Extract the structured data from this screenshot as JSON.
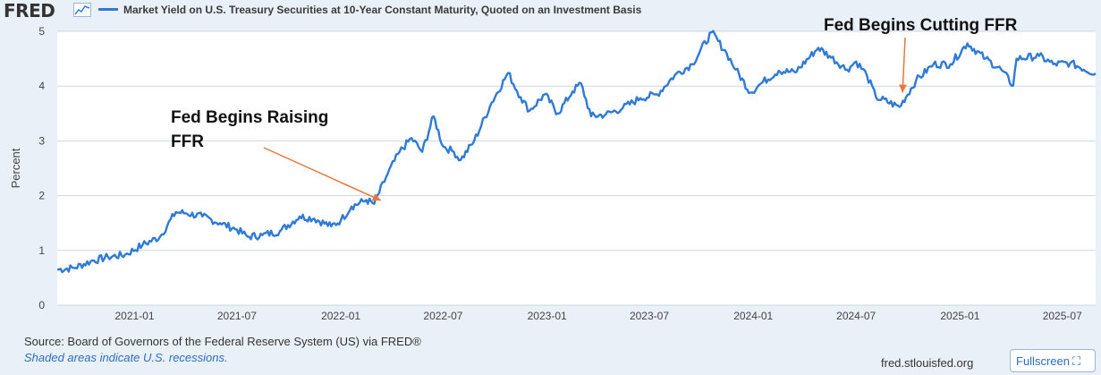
{
  "header": {
    "logo_text": "FRED",
    "logo_icon": "line-graph-icon",
    "legend_label": "Market Yield on U.S. Treasury Securities at 10-Year Constant Maturity, Quoted on an Investment Basis"
  },
  "footer": {
    "source": "Source: Board of Governors of the Federal Reserve System (US) via FRED®",
    "shaded_note": "Shaded areas indicate U.S. recessions.",
    "site": "fred.stlouisfed.org",
    "fullscreen_label": "Fullscreen",
    "fullscreen_icon": "expand-icon"
  },
  "colors": {
    "series": "#2e7ad6",
    "annotation_arrow": "#e8783a",
    "grid": "#cfd6df",
    "background": "#eaf0f7"
  },
  "chart_data": {
    "type": "line",
    "title": "",
    "xlabel": "",
    "ylabel": "Percent",
    "ylim": [
      0,
      5
    ],
    "xlim": [
      "2020-08-17",
      "2025-08-29"
    ],
    "grid": true,
    "y_ticks": [
      0,
      1,
      2,
      3,
      4,
      5
    ],
    "x_ticks": [
      "2021-01",
      "2021-07",
      "2022-01",
      "2022-07",
      "2023-01",
      "2023-07",
      "2024-01",
      "2024-07",
      "2025-01",
      "2025-07"
    ],
    "series": [
      {
        "name": "Market Yield on U.S. Treasury Securities at 10-Year Constant Maturity, Quoted on an Investment Basis",
        "x": [
          "2020-08-17",
          "2020-09-15",
          "2020-10-15",
          "2020-11-15",
          "2020-12-15",
          "2021-01-15",
          "2021-02-15",
          "2021-03-15",
          "2021-04-01",
          "2021-05-01",
          "2021-06-01",
          "2021-07-01",
          "2021-07-20",
          "2021-08-15",
          "2021-09-15",
          "2021-10-20",
          "2021-11-15",
          "2021-12-15",
          "2022-01-01",
          "2022-01-20",
          "2022-02-15",
          "2022-03-01",
          "2022-03-25",
          "2022-04-15",
          "2022-05-06",
          "2022-05-25",
          "2022-06-14",
          "2022-07-01",
          "2022-07-20",
          "2022-08-01",
          "2022-08-25",
          "2022-09-25",
          "2022-10-24",
          "2022-11-15",
          "2022-12-01",
          "2022-12-28",
          "2023-01-20",
          "2023-02-15",
          "2023-03-02",
          "2023-03-20",
          "2023-04-15",
          "2023-05-15",
          "2023-06-15",
          "2023-07-15",
          "2023-08-15",
          "2023-09-15",
          "2023-10-19",
          "2023-11-15",
          "2023-12-01",
          "2023-12-27",
          "2024-01-15",
          "2024-02-15",
          "2024-03-15",
          "2024-04-25",
          "2024-05-15",
          "2024-06-15",
          "2024-07-01",
          "2024-07-20",
          "2024-08-05",
          "2024-09-16",
          "2024-10-15",
          "2024-11-15",
          "2024-12-15",
          "2025-01-14",
          "2025-02-15",
          "2025-03-15",
          "2025-04-05",
          "2025-04-11",
          "2025-05-21",
          "2025-06-15",
          "2025-07-15",
          "2025-08-29"
        ],
        "y": [
          0.65,
          0.68,
          0.8,
          0.88,
          0.92,
          1.1,
          1.25,
          1.7,
          1.68,
          1.62,
          1.5,
          1.38,
          1.25,
          1.28,
          1.35,
          1.62,
          1.58,
          1.44,
          1.55,
          1.8,
          1.92,
          1.85,
          2.4,
          2.8,
          3.05,
          2.8,
          3.45,
          2.9,
          2.8,
          2.65,
          3.0,
          3.7,
          4.24,
          3.8,
          3.55,
          3.85,
          3.5,
          3.9,
          4.05,
          3.45,
          3.48,
          3.6,
          3.78,
          3.85,
          4.2,
          4.4,
          4.98,
          4.6,
          4.3,
          3.88,
          4.05,
          4.28,
          4.25,
          4.7,
          4.55,
          4.3,
          4.45,
          4.2,
          3.8,
          3.62,
          4.1,
          4.4,
          4.4,
          4.78,
          4.5,
          4.3,
          4.01,
          4.5,
          4.55,
          4.4,
          4.42,
          4.23
        ]
      }
    ],
    "annotations": [
      {
        "text": "Fed Begins Raising FFR",
        "lines": [
          "Fed Begins Raising",
          "FFR"
        ],
        "date": "2022-03-16"
      },
      {
        "text": "Fed Begins Cutting FFR",
        "lines": [
          "Fed Begins Cutting FFR"
        ],
        "date": "2024-09-18"
      }
    ]
  }
}
